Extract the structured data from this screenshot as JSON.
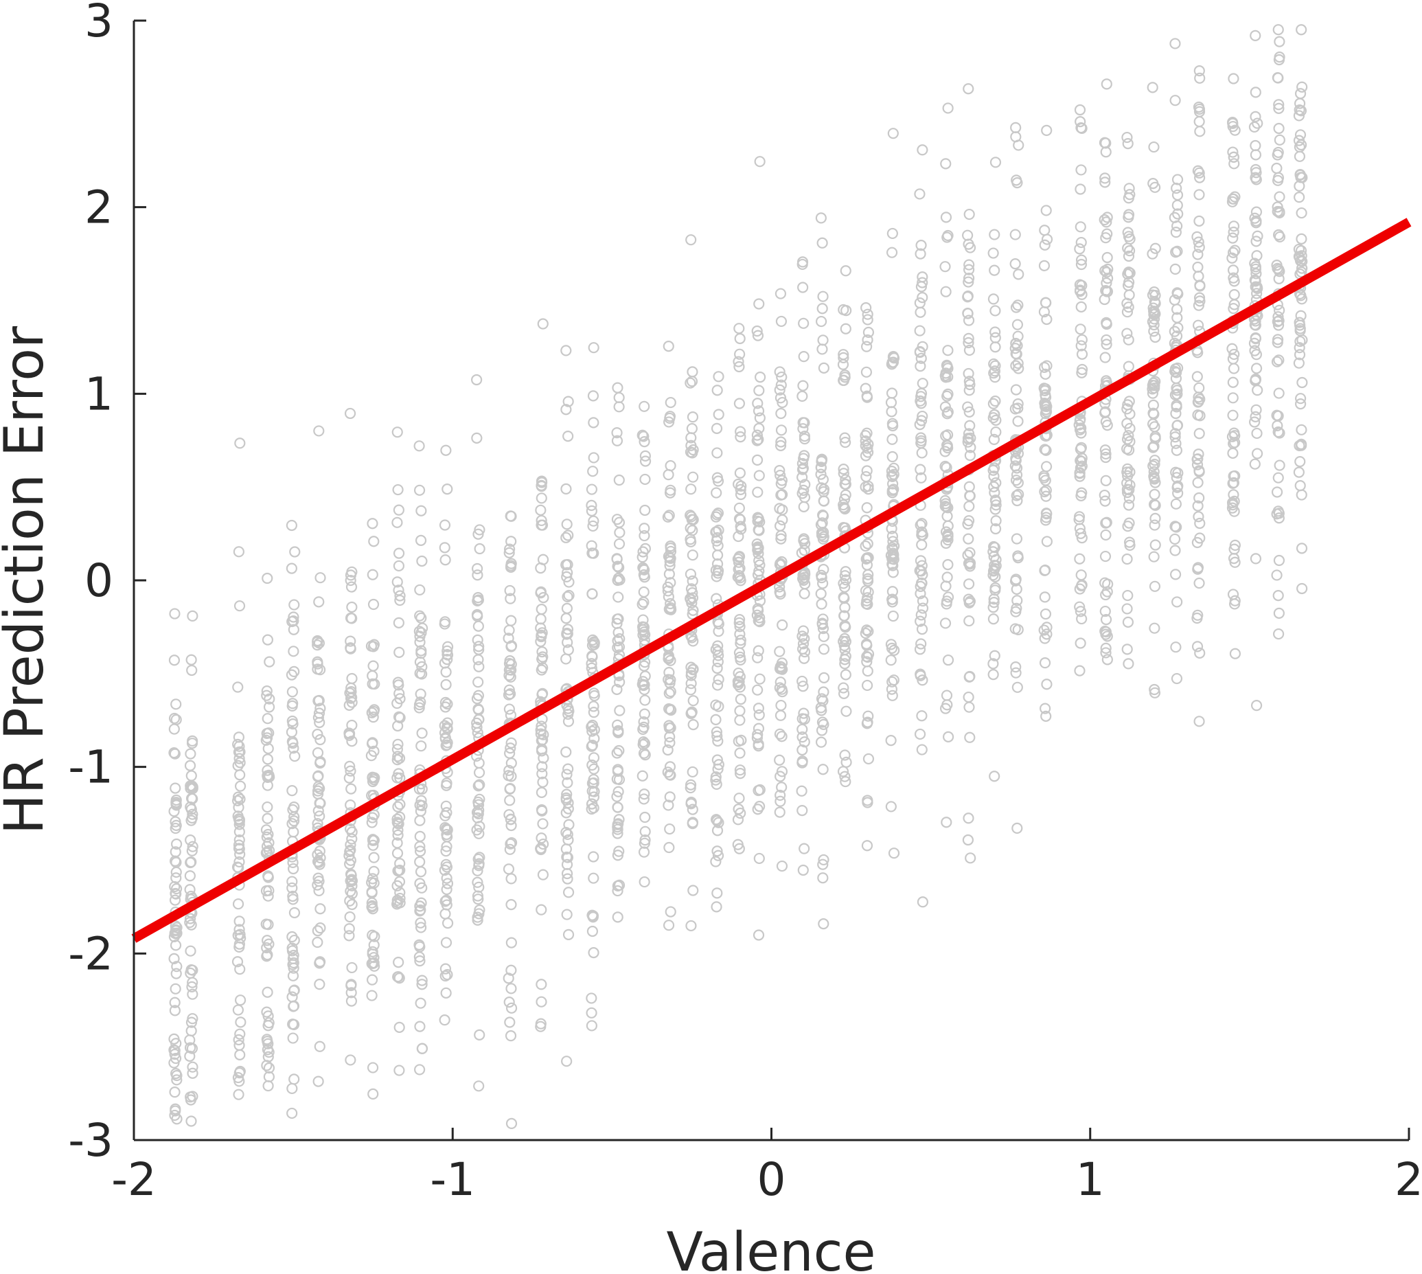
{
  "chart_data": {
    "type": "scatter",
    "title": "",
    "xlabel": "Valence",
    "ylabel": "HR Prediction Error",
    "xlim": [
      -2,
      2
    ],
    "ylim": [
      -3,
      3
    ],
    "xticks": [
      "-2",
      "-1",
      "0",
      "1",
      "2"
    ],
    "yticks": [
      "-3",
      "-2",
      "-1",
      "0",
      "1",
      "2",
      "3"
    ],
    "grid": false,
    "point_color": "#c8c8c8",
    "line_color": "#ee0000",
    "x_columns": [
      -1.87,
      -1.82,
      -1.67,
      -1.58,
      -1.5,
      -1.42,
      -1.32,
      -1.25,
      -1.17,
      -1.1,
      -1.02,
      -0.92,
      -0.82,
      -0.72,
      -0.64,
      -0.56,
      -0.48,
      -0.4,
      -0.32,
      -0.25,
      -0.17,
      -0.1,
      -0.04,
      0.03,
      0.1,
      0.16,
      0.23,
      0.3,
      0.38,
      0.47,
      0.55,
      0.62,
      0.7,
      0.77,
      0.86,
      0.97,
      1.05,
      1.12,
      1.2,
      1.27,
      1.34,
      1.45,
      1.52,
      1.59,
      1.66
    ],
    "series": [
      {
        "type": "line",
        "x": [
          -2,
          2
        ],
        "y": [
          -1.92,
          1.92
        ]
      },
      {
        "type": "scatter",
        "points_per_column": 60,
        "y_jitter_sd": 0.75,
        "note_free": true
      }
    ]
  }
}
